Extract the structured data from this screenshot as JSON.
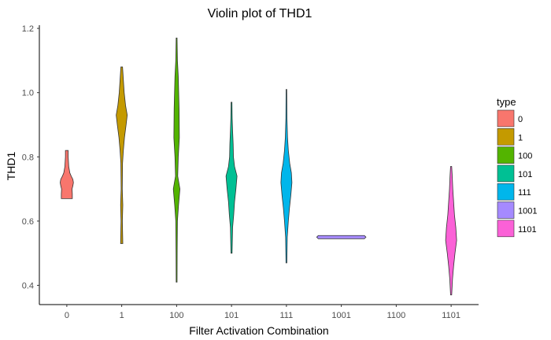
{
  "chart_data": {
    "type": "violin",
    "title": "Violin plot of THD1",
    "xlabel": "Filter Activation Combination",
    "ylabel": "THD1",
    "categories": [
      "0",
      "1",
      "100",
      "101",
      "111",
      "1001",
      "1100",
      "1101"
    ],
    "ylim": [
      0.34,
      1.21
    ],
    "yticks": [
      0.4,
      0.6,
      0.8,
      1.0,
      1.2
    ],
    "ytick_labels": [
      "0.4",
      "0.6",
      "0.8",
      "1.0",
      "1.2"
    ],
    "grid": false,
    "legend": {
      "title": "type",
      "position": "right",
      "entries": [
        "0",
        "1",
        "100",
        "101",
        "111",
        "1001",
        "1101"
      ]
    },
    "series": [
      {
        "category": "0",
        "color": "#F8766D",
        "y": [
          0.67,
          0.685,
          0.7,
          0.71,
          0.72,
          0.73,
          0.74,
          0.75,
          0.77,
          0.8,
          0.82
        ],
        "density": [
          1.0,
          1.0,
          0.95,
          1.1,
          1.2,
          1.1,
          0.8,
          0.55,
          0.35,
          0.25,
          0.25
        ]
      },
      {
        "category": "1",
        "color": "#C49A00",
        "y": [
          0.53,
          0.6,
          0.65,
          0.7,
          0.78,
          0.82,
          0.86,
          0.9,
          0.93,
          0.96,
          1.0,
          1.04,
          1.08
        ],
        "density": [
          0.2,
          0.12,
          0.2,
          0.1,
          0.15,
          0.3,
          0.5,
          0.8,
          1.0,
          0.7,
          0.45,
          0.3,
          0.15
        ]
      },
      {
        "category": "100",
        "color": "#53B400",
        "y": [
          0.41,
          0.5,
          0.6,
          0.65,
          0.7,
          0.74,
          0.8,
          0.86,
          0.95,
          1.05,
          1.1,
          1.17
        ],
        "density": [
          0.08,
          0.1,
          0.15,
          0.35,
          0.6,
          0.2,
          0.3,
          0.5,
          0.45,
          0.3,
          0.15,
          0.08
        ]
      },
      {
        "category": "101",
        "color": "#00C094",
        "y": [
          0.5,
          0.58,
          0.62,
          0.66,
          0.7,
          0.74,
          0.77,
          0.8,
          0.84,
          0.88,
          0.92,
          0.97
        ],
        "density": [
          0.1,
          0.2,
          0.4,
          0.55,
          0.8,
          1.0,
          0.55,
          0.35,
          0.3,
          0.2,
          0.12,
          0.08
        ]
      },
      {
        "category": "111",
        "color": "#00B6EB",
        "y": [
          0.47,
          0.55,
          0.6,
          0.64,
          0.68,
          0.72,
          0.75,
          0.78,
          0.82,
          0.86,
          0.92,
          1.01
        ],
        "density": [
          0.08,
          0.15,
          0.35,
          0.55,
          0.8,
          1.0,
          0.9,
          0.6,
          0.35,
          0.2,
          0.1,
          0.06
        ]
      },
      {
        "category": "1001",
        "color": "#A58AFF",
        "y": [
          0.545,
          0.55,
          0.555
        ],
        "density": [
          1.0,
          1.0,
          1.0
        ]
      },
      {
        "category": "1101",
        "color": "#FB61D7",
        "y": [
          0.37,
          0.42,
          0.46,
          0.5,
          0.54,
          0.58,
          0.62,
          0.66,
          0.7,
          0.74,
          0.77
        ],
        "density": [
          0.1,
          0.25,
          0.45,
          0.7,
          1.0,
          0.85,
          0.6,
          0.45,
          0.3,
          0.2,
          0.1
        ]
      }
    ]
  }
}
